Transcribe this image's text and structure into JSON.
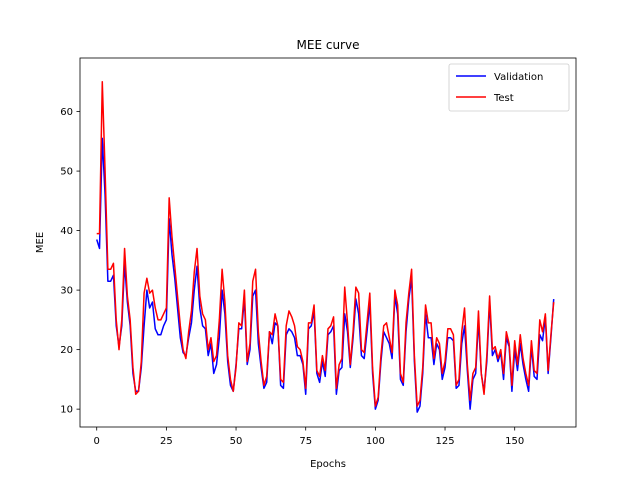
{
  "chart_data": {
    "type": "line",
    "title": "MEE curve",
    "xlabel": "Epochs",
    "ylabel": "MEE",
    "xlim": [
      -6,
      172
    ],
    "ylim": [
      7,
      69
    ],
    "xticks": [
      0,
      25,
      50,
      75,
      100,
      125,
      150
    ],
    "yticks": [
      10,
      20,
      30,
      40,
      50,
      60
    ],
    "grid": false,
    "legend_position": "top-right",
    "series": [
      {
        "name": "Validation",
        "color": "#0000ff",
        "values": [
          38.5,
          37,
          55.5,
          46,
          31.5,
          31.5,
          32.5,
          24,
          20.5,
          24,
          34.5,
          28,
          24,
          16,
          13,
          13,
          17,
          24,
          30,
          27,
          28,
          23.5,
          22.5,
          22.5,
          24,
          25,
          42,
          36,
          32,
          27,
          22,
          19.5,
          19,
          22,
          24.5,
          30,
          34,
          27,
          24,
          23.5,
          19,
          21,
          16,
          17.5,
          22,
          30,
          26,
          18,
          14,
          13,
          17.5,
          23.5,
          23.5,
          28.5,
          17.5,
          20,
          29,
          30,
          21,
          17,
          13.5,
          14.5,
          23,
          21,
          24.5,
          24,
          14,
          13.5,
          22.5,
          23.5,
          23,
          22,
          19,
          19,
          17.5,
          12.5,
          23.5,
          24,
          26.5,
          16,
          14.5,
          18,
          15.5,
          22.5,
          23,
          24,
          12.5,
          16.5,
          17,
          26,
          23,
          17,
          22,
          28.5,
          26,
          19,
          18.5,
          23,
          28,
          16,
          10,
          11.5,
          18,
          23,
          22,
          21,
          18.5,
          29,
          26,
          15,
          14,
          23,
          28.5,
          32,
          18,
          9.5,
          10.5,
          16,
          26,
          22,
          22,
          17.5,
          21,
          20,
          15,
          17,
          22,
          22,
          21.5,
          13.5,
          14,
          21,
          24,
          16.5,
          10,
          15,
          16,
          25,
          16,
          13,
          18,
          28,
          19,
          20,
          18,
          19.5,
          15,
          22,
          20.5,
          13,
          20,
          16.5,
          21,
          17.5,
          15,
          13,
          20.5,
          15.5,
          15,
          22.5,
          21.5,
          25.5,
          16,
          22,
          28.5
        ]
      },
      {
        "name": "Test",
        "color": "#ff0000",
        "values": [
          39.5,
          39.5,
          65,
          50,
          33.5,
          33.5,
          34.5,
          25,
          20,
          25,
          37,
          29,
          25,
          17,
          12.5,
          13,
          18,
          29.5,
          32,
          29.5,
          30,
          27,
          25,
          25,
          26,
          27,
          45.5,
          39,
          34,
          29,
          24,
          20,
          18.5,
          23,
          26.5,
          33,
          37,
          29,
          26,
          25,
          20,
          22,
          18,
          19,
          25,
          33.5,
          28,
          19,
          15,
          13,
          17,
          24.5,
          24,
          30,
          18,
          21,
          31.5,
          33.5,
          23,
          18,
          14,
          15.5,
          23,
          22.5,
          26,
          24,
          15,
          14.5,
          24,
          26.5,
          25.5,
          24,
          20.5,
          20,
          18,
          13.5,
          24.5,
          24.5,
          27.5,
          16.5,
          15.5,
          19,
          16.5,
          23.5,
          24,
          25.5,
          13.5,
          17.5,
          18.5,
          30.5,
          24.5,
          17.5,
          23,
          30.5,
          29.5,
          20,
          19.5,
          24.5,
          29.5,
          17,
          10.5,
          12,
          19,
          24,
          24.5,
          22,
          19.5,
          30,
          27.5,
          16,
          14.5,
          24.5,
          29.5,
          33.5,
          19,
          10.5,
          11.5,
          17,
          27.5,
          24.5,
          24.5,
          18.5,
          22,
          21,
          16,
          18,
          23.5,
          23.5,
          22.5,
          14,
          15,
          23,
          27,
          17.5,
          11.5,
          16,
          17,
          26.5,
          16,
          12.5,
          19,
          29,
          20,
          20.5,
          18.5,
          20,
          16,
          23,
          21,
          14,
          21.5,
          17.5,
          22.5,
          18.5,
          16,
          14,
          21.5,
          16.5,
          16,
          25,
          23,
          26,
          16.5,
          22.5,
          28
        ]
      }
    ]
  }
}
